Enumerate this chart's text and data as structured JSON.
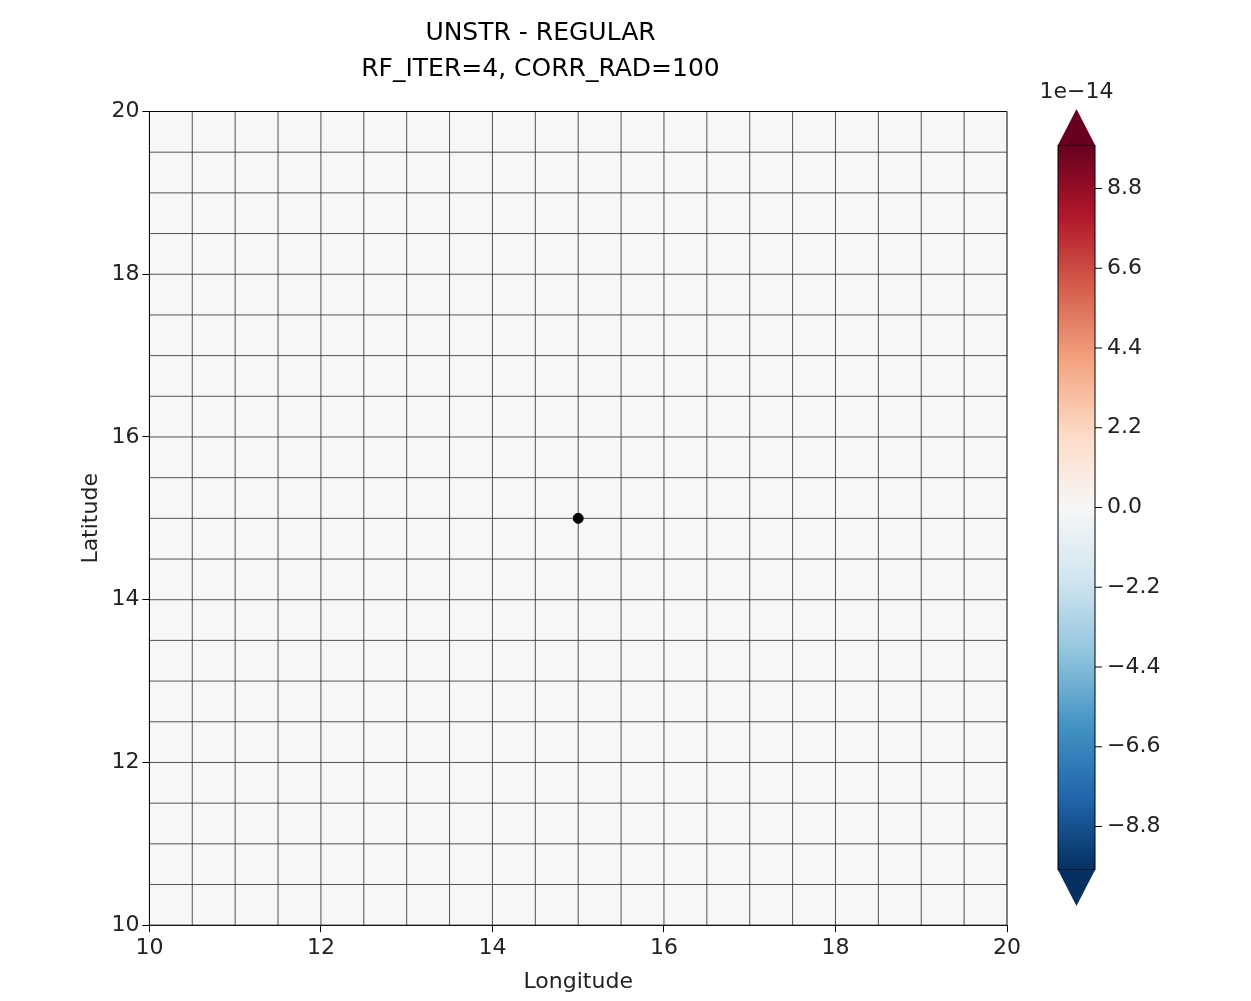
{
  "chart_data": {
    "type": "heatmap",
    "title": "UNSTR - REGULAR\nRF_ITER=4, CORR_RAD=100",
    "xlabel": "Longitude",
    "ylabel": "Latitude",
    "cells": [
      [
        0,
        0,
        0,
        0,
        0,
        0,
        0,
        0,
        0,
        0,
        0,
        0,
        0,
        0,
        0,
        0,
        0,
        0,
        0,
        0
      ],
      [
        0,
        0,
        0,
        0,
        0,
        0,
        0,
        0,
        0,
        0,
        0,
        0,
        0,
        0,
        0,
        0,
        0,
        0,
        0,
        0
      ],
      [
        0,
        0,
        0,
        0,
        0,
        0,
        0,
        0,
        0,
        0,
        0,
        0,
        0,
        0,
        0,
        0,
        0,
        0,
        0,
        0
      ],
      [
        0,
        0,
        0,
        0,
        0,
        0,
        0,
        0,
        0,
        0,
        0,
        0,
        0,
        0,
        0,
        0,
        0,
        0,
        0,
        0
      ],
      [
        0,
        0,
        0,
        0,
        0,
        0,
        0,
        0,
        0,
        0,
        0,
        0,
        0,
        0,
        0,
        0,
        0,
        0,
        0,
        0
      ],
      [
        0,
        0,
        0,
        0,
        0,
        0,
        0,
        0,
        0,
        0,
        0,
        0,
        0,
        0,
        0,
        0,
        0,
        0,
        0,
        0
      ],
      [
        0,
        0,
        0,
        0,
        0,
        0,
        0,
        0,
        0,
        0,
        0,
        0,
        0,
        0,
        0,
        0,
        0,
        0,
        0,
        0
      ],
      [
        0,
        0,
        0,
        0,
        0,
        0,
        0,
        0,
        0,
        0,
        0,
        0,
        0,
        0,
        0,
        0,
        0,
        0,
        0,
        0
      ],
      [
        0,
        0,
        0,
        0,
        0,
        0,
        0,
        0,
        0,
        0,
        0,
        0,
        0,
        0,
        0,
        0,
        0,
        0,
        0,
        0
      ],
      [
        0,
        0,
        0,
        0,
        0,
        0,
        0,
        0,
        0,
        0,
        0,
        0,
        0,
        0,
        0,
        0,
        0,
        0,
        0,
        0
      ],
      [
        0,
        0,
        0,
        0,
        0,
        0,
        0,
        0,
        0,
        0,
        0,
        0,
        0,
        0,
        0,
        0,
        0,
        0,
        0,
        0
      ],
      [
        0,
        0,
        0,
        0,
        0,
        0,
        0,
        0,
        0,
        0,
        0,
        0,
        0,
        0,
        0,
        0,
        0,
        0,
        0,
        0
      ],
      [
        0,
        0,
        0,
        0,
        0,
        0,
        0,
        0,
        0,
        0,
        0,
        0,
        0,
        0,
        0,
        0,
        0,
        0,
        0,
        0
      ],
      [
        0,
        0,
        0,
        0,
        0,
        0,
        0,
        0,
        0,
        0,
        0,
        0,
        0,
        0,
        0,
        0,
        0,
        0,
        0,
        0
      ],
      [
        0,
        0,
        0,
        0,
        0,
        0,
        0,
        0,
        0,
        0,
        0,
        0,
        0,
        0,
        0,
        0,
        0,
        0,
        0,
        0
      ],
      [
        0,
        0,
        0,
        0,
        0,
        0,
        0,
        0,
        0,
        0,
        0,
        0,
        0,
        0,
        0,
        0,
        0,
        0,
        0,
        0
      ],
      [
        0,
        0,
        0,
        0,
        0,
        0,
        0,
        0,
        0,
        0,
        0,
        0,
        0,
        0,
        0,
        0,
        0,
        0,
        0,
        0
      ],
      [
        0,
        0,
        0,
        0,
        0,
        0,
        0,
        0,
        0,
        0,
        0,
        0,
        0,
        0,
        0,
        0,
        0,
        0,
        0,
        0
      ],
      [
        0,
        0,
        0,
        0,
        0,
        0,
        0,
        0,
        0,
        0,
        0,
        0,
        0,
        0,
        0,
        0,
        0,
        0,
        0,
        0
      ],
      [
        0,
        0,
        0,
        0,
        0,
        0,
        0,
        0,
        0,
        0,
        0,
        0,
        0,
        0,
        0,
        0,
        0,
        0,
        0,
        0
      ]
    ],
    "xlim": [
      10,
      20
    ],
    "xticks": [
      10,
      12,
      14,
      16,
      18,
      20
    ],
    "ylim": [
      10,
      20
    ],
    "yticks": [
      10,
      12,
      14,
      16,
      18,
      20
    ],
    "clim": [
      -10,
      10
    ],
    "cticks": [
      {
        "value": -8.8,
        "label": "−8.8"
      },
      {
        "value": -6.6,
        "label": "−6.6"
      },
      {
        "value": -4.4,
        "label": "−4.4"
      },
      {
        "value": -2.2,
        "label": "−2.2"
      },
      {
        "value": 0,
        "label": "0.0"
      },
      {
        "value": 2.2,
        "label": "2.2"
      },
      {
        "value": 4.4,
        "label": "4.4"
      },
      {
        "value": 6.6,
        "label": "6.6"
      },
      {
        "value": 8.8,
        "label": "8.8"
      }
    ],
    "annotations": [
      "1e−14"
    ],
    "series": [
      {
        "type": "scatter",
        "x": [
          15
        ],
        "values": [
          15
        ],
        "color": "#000000"
      }
    ],
    "marker": "circle",
    "grid": true
  }
}
